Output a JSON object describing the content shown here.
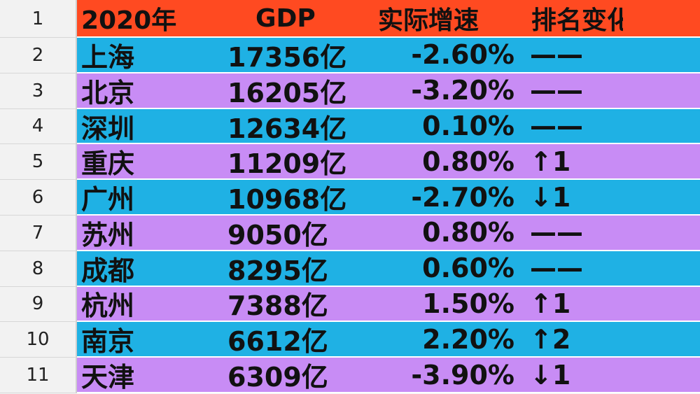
{
  "header": {
    "row_number": "1",
    "col_year": "2020年",
    "col_gdp": "GDP",
    "col_rate": "实际增速",
    "col_rank": "排名变化"
  },
  "rows": [
    {
      "n": "2",
      "city": "上海",
      "gdp": "17356亿",
      "rate": "-2.60%",
      "rank": "——"
    },
    {
      "n": "3",
      "city": "北京",
      "gdp": "16205亿",
      "rate": "-3.20%",
      "rank": "——"
    },
    {
      "n": "4",
      "city": "深圳",
      "gdp": "12634亿",
      "rate": "0.10%",
      "rank": "——"
    },
    {
      "n": "5",
      "city": "重庆",
      "gdp": "11209亿",
      "rate": "0.80%",
      "rank": "↑1"
    },
    {
      "n": "6",
      "city": "广州",
      "gdp": "10968亿",
      "rate": "-2.70%",
      "rank": "↓1"
    },
    {
      "n": "7",
      "city": "苏州",
      "gdp": "9050亿",
      "rate": "0.80%",
      "rank": "——"
    },
    {
      "n": "8",
      "city": "成都",
      "gdp": "8295亿",
      "rate": "0.60%",
      "rank": "——"
    },
    {
      "n": "9",
      "city": "杭州",
      "gdp": "7388亿",
      "rate": "1.50%",
      "rank": "↑1"
    },
    {
      "n": "10",
      "city": "南京",
      "gdp": "6612亿",
      "rate": "2.20%",
      "rank": "↑2"
    },
    {
      "n": "11",
      "city": "天津",
      "gdp": "6309亿",
      "rate": "-3.90%",
      "rank": "↓1"
    }
  ],
  "colors": {
    "header_bg": "#ff4a21",
    "row_blue": "#1fb1e4",
    "row_purple": "#c88cf5"
  }
}
